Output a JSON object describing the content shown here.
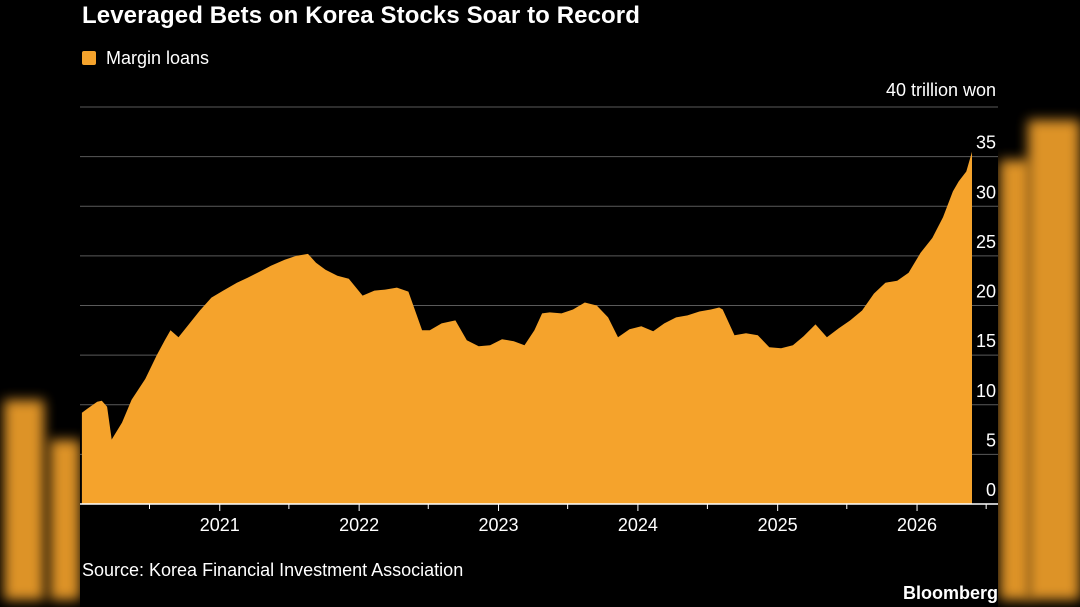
{
  "header": {
    "title": "Leveraged Bets on Korea Stocks Soar to Record"
  },
  "legend": {
    "label": "Margin loans"
  },
  "colors": {
    "series": "#f5a32c",
    "background": "#000000",
    "grid": "#5a5a5a",
    "text": "#ffffff"
  },
  "footer": {
    "source": "Source: Korea Financial Investment Association",
    "brand": "Bloomberg"
  },
  "chart_data": {
    "type": "area",
    "title": "Leveraged Bets on Korea Stocks Soar to Record",
    "unit_label": "40 trillion won",
    "ylim": [
      0,
      40
    ],
    "y_ticks": [
      "0",
      "5",
      "10",
      "15",
      "20",
      "25",
      "30",
      "35"
    ],
    "x_ticks": [
      "2021",
      "2022",
      "2023",
      "2024",
      "2025",
      "2026"
    ],
    "xlim": [
      "2020-01-01",
      "2026-08-01"
    ],
    "grid": true,
    "y_axis_position": "right",
    "legend_position": "top-left",
    "series": [
      {
        "name": "Margin loans",
        "color": "#f5a32c",
        "x": [
          "2020-01-06",
          "2020-01-20",
          "2020-02-15",
          "2020-02-27",
          "2020-03-12",
          "2020-03-24",
          "2020-04-20",
          "2020-05-15",
          "2020-06-20",
          "2020-07-20",
          "2020-08-10",
          "2020-08-25",
          "2020-09-15",
          "2020-10-10",
          "2020-11-10",
          "2020-12-10",
          "2021-01-10",
          "2021-02-15",
          "2021-03-15",
          "2021-04-15",
          "2021-05-15",
          "2021-06-20",
          "2021-07-20",
          "2021-08-20",
          "2021-09-10",
          "2021-10-05",
          "2021-11-05",
          "2021-12-05",
          "2022-01-10",
          "2022-02-10",
          "2022-03-10",
          "2022-04-10",
          "2022-05-10",
          "2022-06-15",
          "2022-07-05",
          "2022-08-05",
          "2022-09-10",
          "2022-10-10",
          "2022-11-10",
          "2022-12-10",
          "2023-01-10",
          "2023-02-10",
          "2023-03-10",
          "2023-04-05",
          "2023-04-25",
          "2023-05-15",
          "2023-06-15",
          "2023-07-15",
          "2023-08-15",
          "2023-09-15",
          "2023-10-15",
          "2023-11-10",
          "2023-12-10",
          "2024-01-10",
          "2024-02-10",
          "2024-03-10",
          "2024-04-10",
          "2024-05-10",
          "2024-06-10",
          "2024-07-10",
          "2024-08-01",
          "2024-08-10",
          "2024-09-10",
          "2024-10-10",
          "2024-11-10",
          "2024-12-10",
          "2025-01-10",
          "2025-02-10",
          "2025-03-10",
          "2025-04-10",
          "2025-05-10",
          "2025-06-10",
          "2025-07-10",
          "2025-08-10",
          "2025-09-10",
          "2025-10-10",
          "2025-11-10",
          "2025-12-10",
          "2026-01-10",
          "2026-02-10",
          "2026-03-10",
          "2026-04-05",
          "2026-04-20",
          "2026-05-10",
          "2026-05-25"
        ],
        "values": [
          9.2,
          9.6,
          10.3,
          10.4,
          9.8,
          6.5,
          8.2,
          10.5,
          12.6,
          15.0,
          16.5,
          17.5,
          16.8,
          18.0,
          19.5,
          20.8,
          21.5,
          22.3,
          22.8,
          23.4,
          24.0,
          24.6,
          25.0,
          25.2,
          24.3,
          23.6,
          23.0,
          22.7,
          21.0,
          21.5,
          21.6,
          21.8,
          21.4,
          17.5,
          17.5,
          18.2,
          18.5,
          16.5,
          15.9,
          16.0,
          16.6,
          16.4,
          16.0,
          17.5,
          19.2,
          19.3,
          19.2,
          19.6,
          20.3,
          20.0,
          18.8,
          16.8,
          17.6,
          17.9,
          17.4,
          18.2,
          18.8,
          19.0,
          19.4,
          19.6,
          19.8,
          19.6,
          17.0,
          17.2,
          17.0,
          15.8,
          15.7,
          16.0,
          16.9,
          18.1,
          16.8,
          17.7,
          18.5,
          19.5,
          21.2,
          22.3,
          22.5,
          23.3,
          25.3,
          26.8,
          28.9,
          31.5,
          32.5,
          33.5,
          35.5
        ]
      }
    ]
  }
}
